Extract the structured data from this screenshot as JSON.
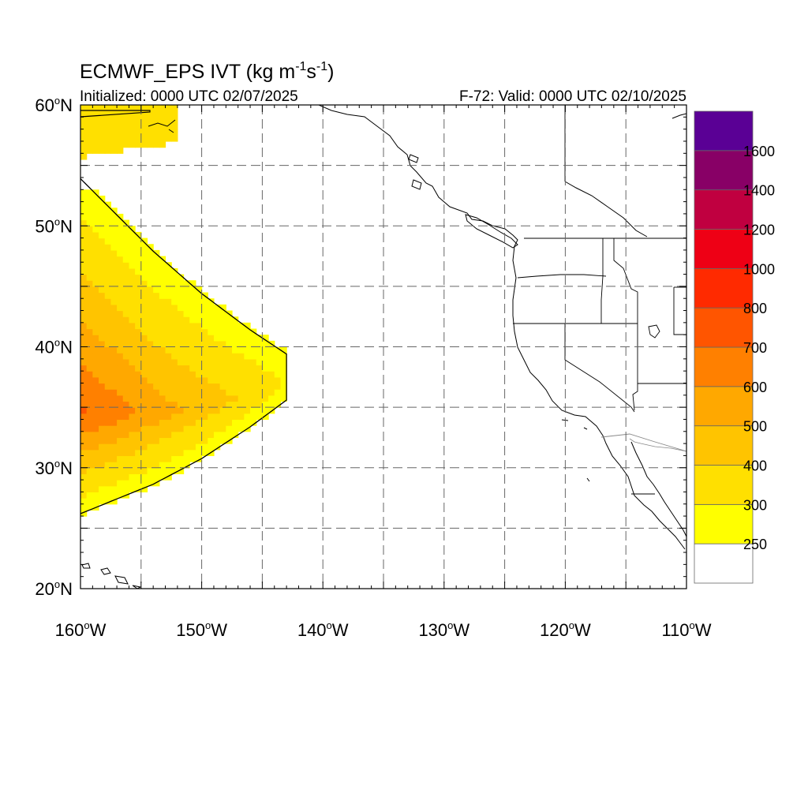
{
  "title": {
    "main": "ECMWF_EPS IVT (kg m",
    "sup1": "-1",
    "mid": "s",
    "sup2": "-1",
    "end": ")"
  },
  "subtitle_left": "Initialized: 0000 UTC 02/07/2025",
  "subtitle_right": "F-72: Valid: 0000 UTC 02/10/2025",
  "map_extent": {
    "lon": [
      -160,
      -110
    ],
    "lat": [
      20,
      60
    ]
  },
  "lon_labels": [
    {
      "value": -160,
      "num": "160",
      "hem": "W"
    },
    {
      "value": -150,
      "num": "150",
      "hem": "W"
    },
    {
      "value": -140,
      "num": "140",
      "hem": "W"
    },
    {
      "value": -130,
      "num": "130",
      "hem": "W"
    },
    {
      "value": -120,
      "num": "120",
      "hem": "W"
    },
    {
      "value": -110,
      "num": "110",
      "hem": "W"
    }
  ],
  "lat_labels": [
    {
      "value": 20,
      "num": "20",
      "hem": "N"
    },
    {
      "value": 30,
      "num": "30",
      "hem": "N"
    },
    {
      "value": 40,
      "num": "40",
      "hem": "N"
    },
    {
      "value": 50,
      "num": "50",
      "hem": "N"
    },
    {
      "value": 60,
      "num": "60",
      "hem": "N"
    }
  ],
  "colorbar": {
    "levels": [
      250,
      300,
      400,
      500,
      600,
      700,
      800,
      1000,
      1200,
      1400,
      1600
    ],
    "labels": [
      "250",
      "300",
      "400",
      "500",
      "600",
      "700",
      "800",
      "1000",
      "1200",
      "1400",
      "1600"
    ],
    "colors": [
      "#ffffff",
      "#ffff00",
      "#ffe000",
      "#ffc400",
      "#ffa800",
      "#ff8000",
      "#ff5500",
      "#ff2a00",
      "#ee0015",
      "#c00040",
      "#880066",
      "#5a0095"
    ]
  },
  "ivt_field": {
    "description_levels_kgms": [
      250,
      300,
      400,
      500,
      600,
      700
    ],
    "plume_axis": [
      {
        "lon": -160,
        "lat": 34.5,
        "ivt": 720
      },
      {
        "lon": -157,
        "lat": 34.5,
        "ivt": 650
      },
      {
        "lon": -154,
        "lat": 34.5,
        "ivt": 560
      },
      {
        "lon": -150,
        "lat": 35,
        "ivt": 470
      },
      {
        "lon": -146,
        "lat": 36,
        "ivt": 380
      },
      {
        "lon": -143,
        "lat": 37,
        "ivt": 300
      }
    ],
    "northwest_blob": {
      "lon_range": [
        -160,
        -152
      ],
      "lat_range": [
        55.5,
        60
      ],
      "ivt": 320
    }
  }
}
